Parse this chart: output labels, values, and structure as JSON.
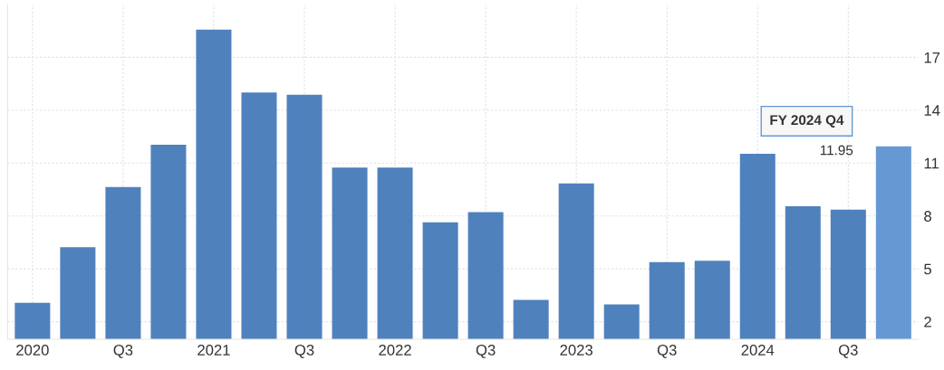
{
  "chart_data": {
    "type": "bar",
    "categories": [
      "2020",
      null,
      "Q3",
      null,
      "2021",
      null,
      "Q3",
      null,
      "2022",
      null,
      "Q3",
      null,
      "2023",
      null,
      "Q3",
      null,
      "2024",
      null,
      "Q3",
      null
    ],
    "values": [
      3.07,
      6.23,
      9.64,
      12.04,
      18.57,
      15.0,
      14.88,
      10.74,
      10.74,
      7.64,
      8.22,
      3.24,
      9.85,
      2.98,
      5.38,
      5.45,
      11.52,
      8.55,
      8.35,
      11.95
    ],
    "colors": [
      "#4f81bd",
      "#4f81bd",
      "#4f81bd",
      "#4f81bd",
      "#4f81bd",
      "#4f81bd",
      "#4f81bd",
      "#4f81bd",
      "#4f81bd",
      "#4f81bd",
      "#4f81bd",
      "#4f81bd",
      "#4f81bd",
      "#4f81bd",
      "#4f81bd",
      "#4f81bd",
      "#4f81bd",
      "#4f81bd",
      "#4f81bd",
      "#6699d4"
    ],
    "ylim": [
      1,
      20
    ],
    "yticks": [
      2,
      5,
      8,
      11,
      14,
      17
    ],
    "grid": true,
    "annotations": [
      "FY 2024 Q4",
      "11.95"
    ]
  }
}
